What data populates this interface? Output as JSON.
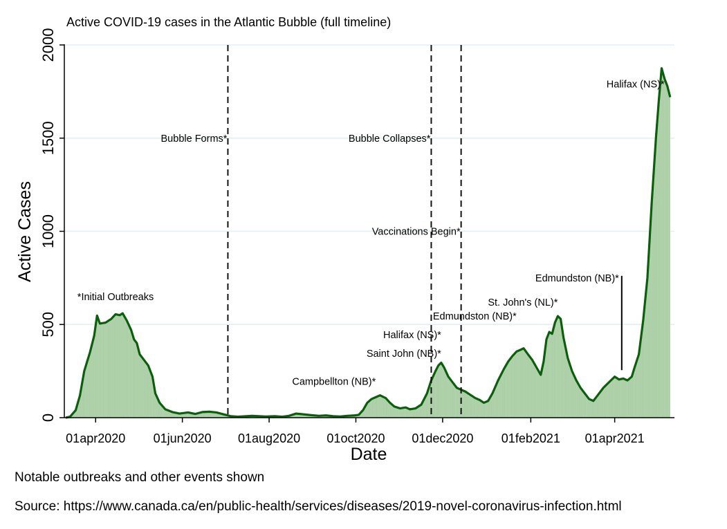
{
  "chart_data": {
    "type": "area",
    "title": "Active COVID-19 cases in the Atlantic Bubble (full timeline)",
    "xlabel": "Date",
    "ylabel": "Active Cases",
    "xlim": [
      "2020-03-10",
      "2021-05-13"
    ],
    "ylim": [
      0,
      2000
    ],
    "yticks": [
      0,
      500,
      1000,
      1500,
      2000
    ],
    "xticks": [
      {
        "date": "2020-04-01",
        "label": "01apr2020"
      },
      {
        "date": "2020-06-01",
        "label": "01jun2020"
      },
      {
        "date": "2020-08-01",
        "label": "01aug2020"
      },
      {
        "date": "2020-10-01",
        "label": "01oct2020"
      },
      {
        "date": "2020-12-01",
        "label": "01dec2020"
      },
      {
        "date": "2021-02-01",
        "label": "01feb2021"
      },
      {
        "date": "2021-04-01",
        "label": "01apr2021"
      }
    ],
    "grid": true,
    "line_color": "#0b5e0b",
    "fill_color": "#a9cea4",
    "series": [
      {
        "points": [
          [
            "2020-03-11",
            0
          ],
          [
            "2020-03-14",
            5
          ],
          [
            "2020-03-18",
            40
          ],
          [
            "2020-03-21",
            120
          ],
          [
            "2020-03-24",
            250
          ],
          [
            "2020-03-28",
            350
          ],
          [
            "2020-03-31",
            440
          ],
          [
            "2020-04-02",
            548
          ],
          [
            "2020-04-04",
            505
          ],
          [
            "2020-04-08",
            510
          ],
          [
            "2020-04-12",
            530
          ],
          [
            "2020-04-15",
            555
          ],
          [
            "2020-04-18",
            550
          ],
          [
            "2020-04-20",
            560
          ],
          [
            "2020-04-23",
            520
          ],
          [
            "2020-04-26",
            470
          ],
          [
            "2020-04-28",
            420
          ],
          [
            "2020-04-30",
            400
          ],
          [
            "2020-05-02",
            340
          ],
          [
            "2020-05-05",
            310
          ],
          [
            "2020-05-08",
            280
          ],
          [
            "2020-05-11",
            220
          ],
          [
            "2020-05-13",
            130
          ],
          [
            "2020-05-16",
            80
          ],
          [
            "2020-05-20",
            45
          ],
          [
            "2020-05-25",
            30
          ],
          [
            "2020-05-30",
            22
          ],
          [
            "2020-06-05",
            28
          ],
          [
            "2020-06-10",
            20
          ],
          [
            "2020-06-15",
            30
          ],
          [
            "2020-06-20",
            32
          ],
          [
            "2020-06-25",
            28
          ],
          [
            "2020-06-30",
            18
          ],
          [
            "2020-07-05",
            8
          ],
          [
            "2020-07-10",
            5
          ],
          [
            "2020-07-20",
            10
          ],
          [
            "2020-07-30",
            6
          ],
          [
            "2020-08-05",
            8
          ],
          [
            "2020-08-10",
            5
          ],
          [
            "2020-08-15",
            10
          ],
          [
            "2020-08-20",
            22
          ],
          [
            "2020-08-25",
            18
          ],
          [
            "2020-08-30",
            14
          ],
          [
            "2020-09-05",
            10
          ],
          [
            "2020-09-10",
            12
          ],
          [
            "2020-09-15",
            8
          ],
          [
            "2020-09-20",
            6
          ],
          [
            "2020-09-25",
            10
          ],
          [
            "2020-09-30",
            12
          ],
          [
            "2020-10-03",
            15
          ],
          [
            "2020-10-06",
            40
          ],
          [
            "2020-10-09",
            80
          ],
          [
            "2020-10-12",
            100
          ],
          [
            "2020-10-15",
            110
          ],
          [
            "2020-10-18",
            120
          ],
          [
            "2020-10-22",
            105
          ],
          [
            "2020-10-25",
            80
          ],
          [
            "2020-10-28",
            60
          ],
          [
            "2020-11-01",
            50
          ],
          [
            "2020-11-05",
            55
          ],
          [
            "2020-11-08",
            45
          ],
          [
            "2020-11-12",
            50
          ],
          [
            "2020-11-16",
            70
          ],
          [
            "2020-11-20",
            130
          ],
          [
            "2020-11-23",
            200
          ],
          [
            "2020-11-26",
            250
          ],
          [
            "2020-11-28",
            280
          ],
          [
            "2020-11-30",
            295
          ],
          [
            "2020-12-02",
            270
          ],
          [
            "2020-12-05",
            220
          ],
          [
            "2020-12-08",
            190
          ],
          [
            "2020-12-11",
            160
          ],
          [
            "2020-12-14",
            150
          ],
          [
            "2020-12-17",
            140
          ],
          [
            "2020-12-20",
            125
          ],
          [
            "2020-12-24",
            105
          ],
          [
            "2020-12-27",
            95
          ],
          [
            "2020-12-30",
            80
          ],
          [
            "2021-01-02",
            90
          ],
          [
            "2021-01-05",
            130
          ],
          [
            "2021-01-09",
            200
          ],
          [
            "2021-01-13",
            260
          ],
          [
            "2021-01-16",
            300
          ],
          [
            "2021-01-19",
            330
          ],
          [
            "2021-01-22",
            355
          ],
          [
            "2021-01-25",
            365
          ],
          [
            "2021-01-27",
            372
          ],
          [
            "2021-01-30",
            340
          ],
          [
            "2021-02-02",
            310
          ],
          [
            "2021-02-05",
            270
          ],
          [
            "2021-02-08",
            230
          ],
          [
            "2021-02-10",
            300
          ],
          [
            "2021-02-12",
            420
          ],
          [
            "2021-02-14",
            460
          ],
          [
            "2021-02-16",
            450
          ],
          [
            "2021-02-18",
            510
          ],
          [
            "2021-02-20",
            545
          ],
          [
            "2021-02-22",
            530
          ],
          [
            "2021-02-24",
            430
          ],
          [
            "2021-02-27",
            320
          ],
          [
            "2021-03-02",
            250
          ],
          [
            "2021-03-05",
            200
          ],
          [
            "2021-03-08",
            160
          ],
          [
            "2021-03-11",
            130
          ],
          [
            "2021-03-14",
            100
          ],
          [
            "2021-03-17",
            90
          ],
          [
            "2021-03-20",
            120
          ],
          [
            "2021-03-24",
            160
          ],
          [
            "2021-03-28",
            190
          ],
          [
            "2021-04-01",
            220
          ],
          [
            "2021-04-04",
            205
          ],
          [
            "2021-04-07",
            210
          ],
          [
            "2021-04-10",
            200
          ],
          [
            "2021-04-13",
            220
          ],
          [
            "2021-04-15",
            270
          ],
          [
            "2021-04-18",
            340
          ],
          [
            "2021-04-21",
            520
          ],
          [
            "2021-04-24",
            750
          ],
          [
            "2021-04-27",
            1150
          ],
          [
            "2021-04-30",
            1500
          ],
          [
            "2021-05-02",
            1700
          ],
          [
            "2021-05-04",
            1875
          ],
          [
            "2021-05-06",
            1820
          ],
          [
            "2021-05-08",
            1780
          ],
          [
            "2021-05-10",
            1720
          ]
        ]
      }
    ],
    "events": [
      {
        "date": "2020-07-03",
        "label": "Bubble Forms*",
        "y": 1500
      },
      {
        "date": "2020-11-23",
        "label": "Bubble Collapses*",
        "y": 1500
      },
      {
        "date": "2020-12-14",
        "label": "Vaccinations Begin*",
        "y": 1000
      }
    ],
    "annotations": [
      {
        "date": "2020-04-15",
        "y": 650,
        "label": "*Initial Outbreaks",
        "anchor": "middle"
      },
      {
        "date": "2020-10-15",
        "y": 195,
        "label": "Campbellton (NB)*",
        "anchor": "end"
      },
      {
        "date": "2020-11-30",
        "y": 345,
        "label": "Saint John (NB)*",
        "anchor": "end"
      },
      {
        "date": "2020-11-30",
        "y": 445,
        "label": "Halifax (NS)*",
        "anchor": "end"
      },
      {
        "date": "2021-01-22",
        "y": 545,
        "label": "Edmundston (NB)*",
        "anchor": "end"
      },
      {
        "date": "2021-02-20",
        "y": 620,
        "label": "St. John's (NL)*",
        "anchor": "end"
      },
      {
        "date": "2021-04-04",
        "y": 750,
        "label": "Edmundston (NB)*",
        "anchor": "end",
        "pointer_to": 255
      },
      {
        "date": "2021-05-06",
        "y": 1790,
        "label": "Halifax (NS)*",
        "anchor": "end"
      }
    ]
  },
  "footnotes": {
    "note": "Notable outbreaks and other events shown",
    "source": "Source: https://www.canada.ca/en/public-health/services/diseases/2019-novel-coronavirus-infection.html"
  }
}
